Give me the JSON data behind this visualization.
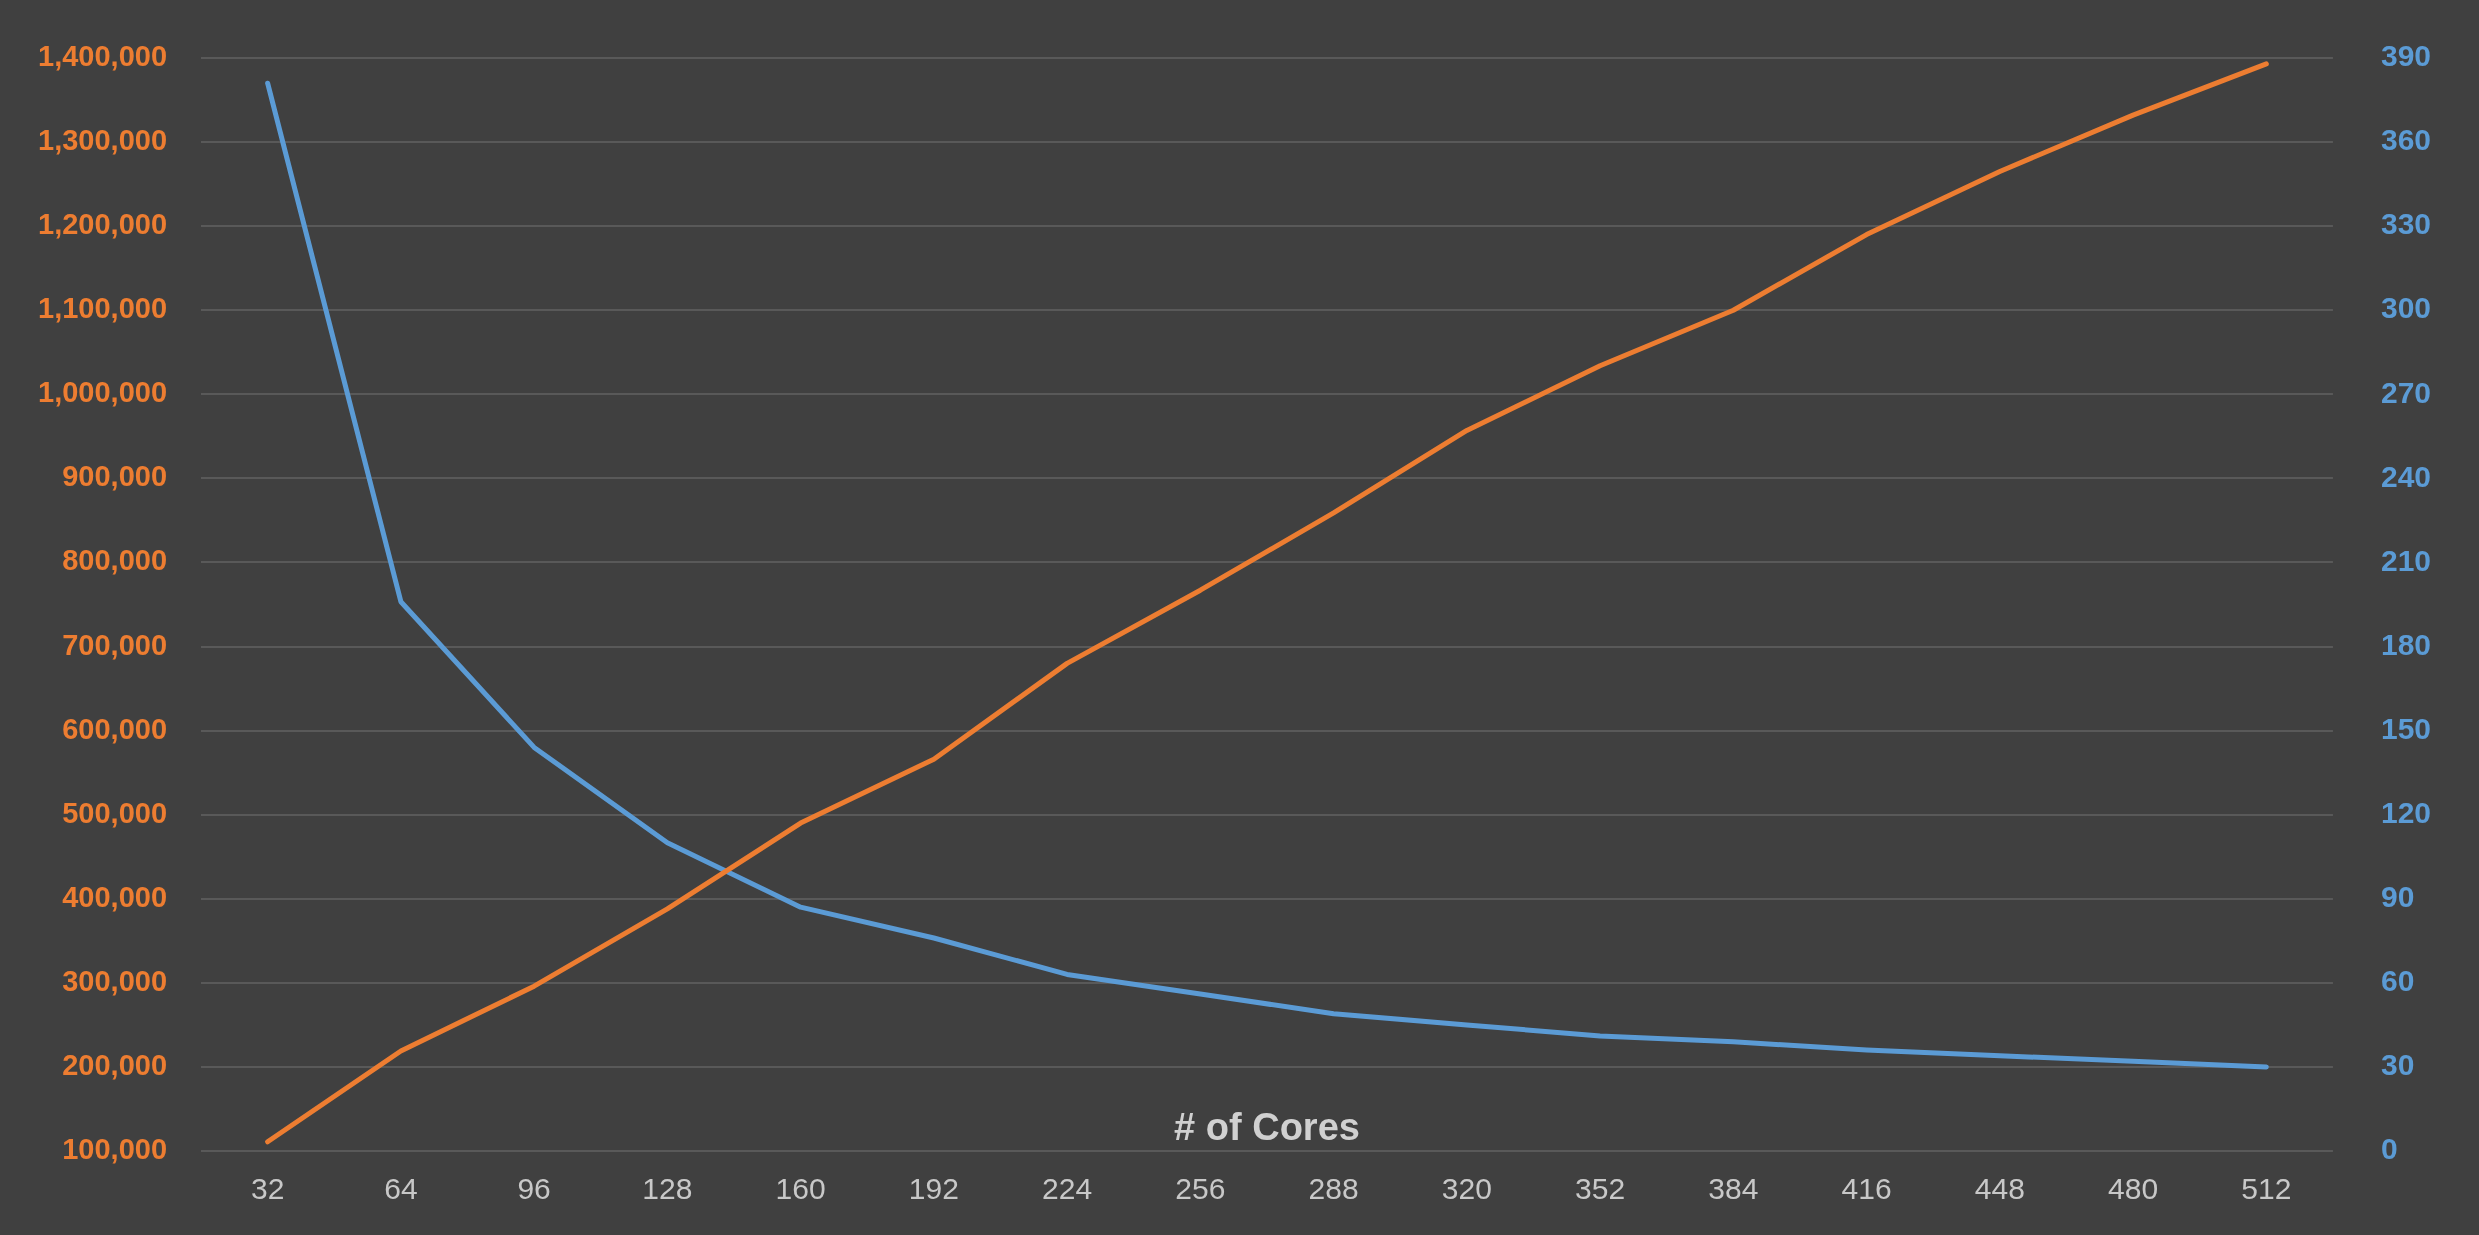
{
  "chart_data": {
    "type": "line",
    "xlabel": "# of Cores",
    "categories": [
      "32",
      "64",
      "96",
      "128",
      "160",
      "192",
      "224",
      "256",
      "288",
      "320",
      "352",
      "384",
      "416",
      "448",
      "480",
      "512"
    ],
    "series": [
      {
        "color": "#ed7d31",
        "values": [
          111000,
          219000,
          296000,
          388000,
          490000,
          566000,
          680000,
          767000,
          859000,
          957000,
          1034000,
          1100000,
          1190000,
          1265000,
          1332000,
          1393000
        ]
      },
      {
        "color": "#5b9bd5",
        "axis": "y2",
        "values": [
          381,
          196,
          144,
          110,
          87,
          76,
          63,
          56,
          49,
          45,
          41,
          39,
          36,
          34,
          32,
          30
        ]
      }
    ],
    "ylim": [
      100000,
      1400000
    ],
    "yticks": [
      {
        "value": 100000,
        "label": "100,000"
      },
      {
        "value": 200000,
        "label": "200,000"
      },
      {
        "value": 300000,
        "label": "300,000"
      },
      {
        "value": 400000,
        "label": "400,000"
      },
      {
        "value": 500000,
        "label": "500,000"
      },
      {
        "value": 600000,
        "label": "600,000"
      },
      {
        "value": 700000,
        "label": "700,000"
      },
      {
        "value": 800000,
        "label": "800,000"
      },
      {
        "value": 900000,
        "label": "900,000"
      },
      {
        "value": 1000000,
        "label": "1,000,000"
      },
      {
        "value": 1100000,
        "label": "1,100,000"
      },
      {
        "value": 1200000,
        "label": "1,200,000"
      },
      {
        "value": 1300000,
        "label": "1,300,000"
      },
      {
        "value": 1400000,
        "label": "1,400,000"
      }
    ],
    "y2lim": [
      0,
      390
    ],
    "y2ticks": [
      0,
      30,
      60,
      90,
      120,
      150,
      180,
      210,
      240,
      270,
      300,
      330,
      360,
      390
    ],
    "grid": "y",
    "legend": false,
    "marker": "none",
    "line_style": "solid"
  }
}
